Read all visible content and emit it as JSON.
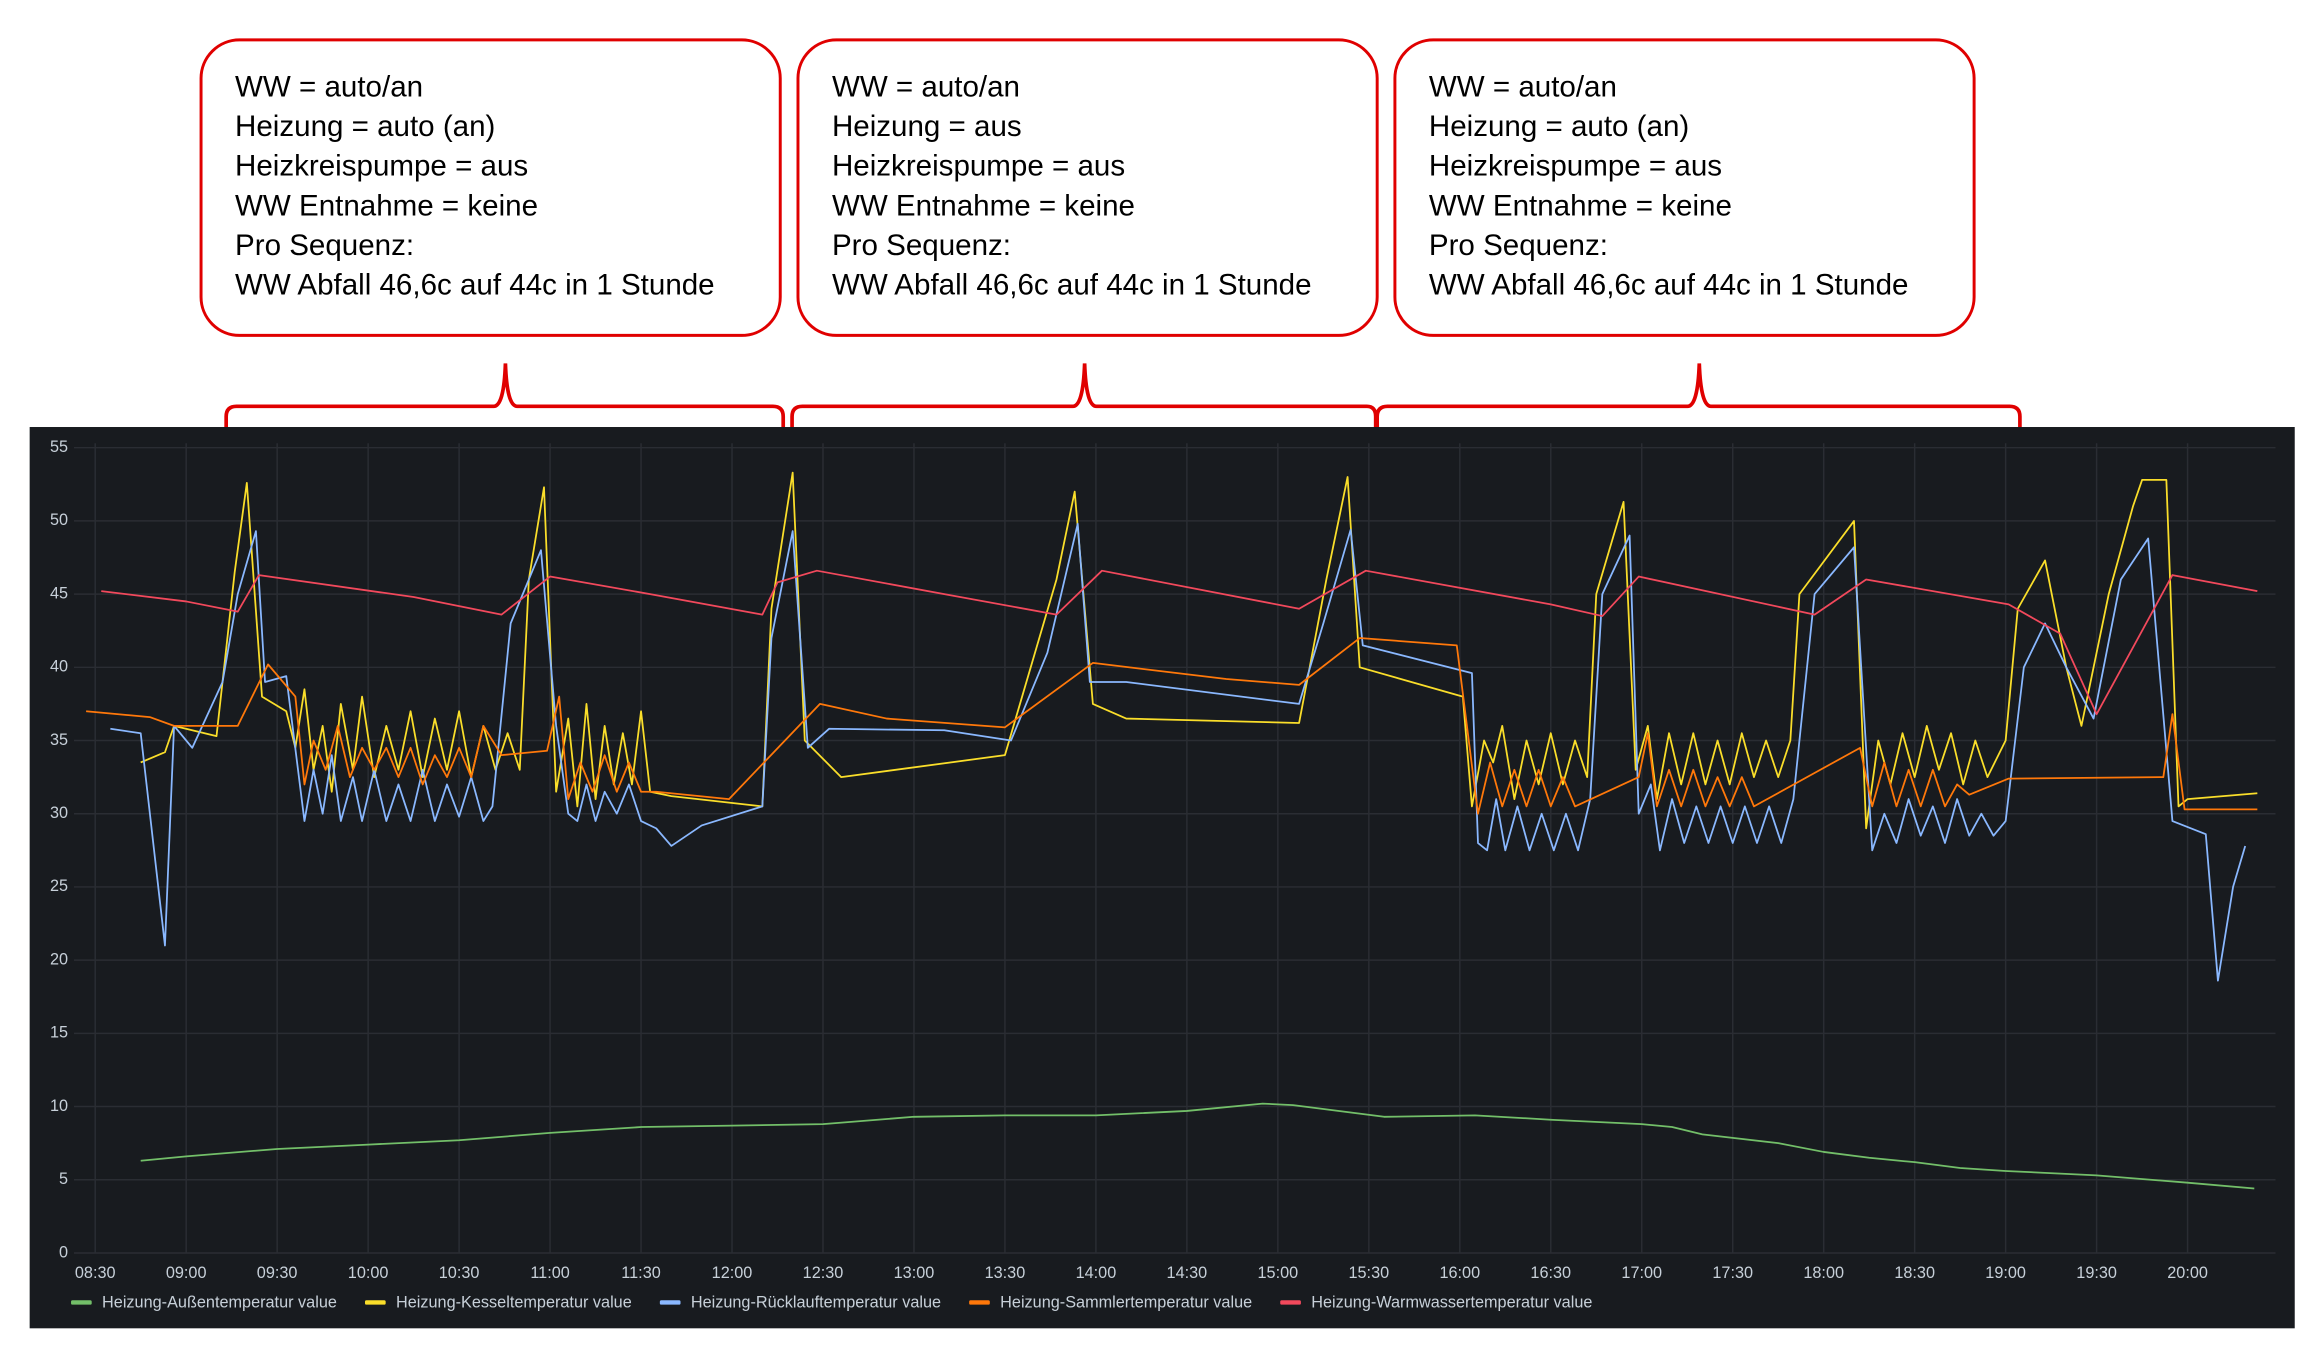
{
  "chart_data": {
    "type": "line",
    "xlim": [
      "08:23",
      "20:29"
    ],
    "xticks": [
      "08:30",
      "09:00",
      "09:30",
      "10:00",
      "10:30",
      "11:00",
      "11:30",
      "12:00",
      "12:30",
      "13:00",
      "13:30",
      "14:00",
      "14:30",
      "15:00",
      "15:30",
      "16:00",
      "16:30",
      "17:00",
      "17:30",
      "18:00",
      "18:30",
      "19:00",
      "19:30",
      "20:00"
    ],
    "ylim": [
      0,
      55
    ],
    "yticks": [
      0,
      5,
      10,
      15,
      20,
      25,
      30,
      35,
      40,
      45,
      50,
      55
    ],
    "grid": true,
    "legend": "bottom-left",
    "series": [
      {
        "name": "Heizung-Außentemperatur value",
        "color": "#73bf69",
        "x": [
          "08:45",
          "09:00",
          "09:30",
          "10:00",
          "10:30",
          "11:00",
          "11:30",
          "12:00",
          "12:30",
          "13:00",
          "13:30",
          "14:00",
          "14:30",
          "14:55",
          "15:05",
          "15:35",
          "16:05",
          "16:30",
          "17:00",
          "17:10",
          "17:20",
          "17:45",
          "18:00",
          "18:15",
          "18:30",
          "18:45",
          "19:00",
          "19:30",
          "20:00",
          "20:22"
        ],
        "values": [
          6.3,
          6.6,
          7.1,
          7.4,
          7.7,
          8.2,
          8.6,
          8.7,
          8.8,
          9.3,
          9.4,
          9.4,
          9.7,
          10.2,
          10.1,
          9.3,
          9.4,
          9.1,
          8.8,
          8.6,
          8.1,
          7.5,
          6.9,
          6.5,
          6.2,
          5.8,
          5.6,
          5.3,
          4.8,
          4.4
        ]
      },
      {
        "name": "Heizung-Kesseltemperatur value",
        "color": "#fade2a",
        "x": [
          "08:45",
          "08:53",
          "08:56",
          "09:10",
          "09:16",
          "09:20",
          "09:25",
          "09:33",
          "09:36",
          "09:39",
          "09:42",
          "09:45",
          "09:48",
          "09:51",
          "09:55",
          "09:58",
          "10:02",
          "10:06",
          "10:10",
          "10:14",
          "10:18",
          "10:22",
          "10:26",
          "10:30",
          "10:34",
          "10:38",
          "10:42",
          "10:46",
          "10:50",
          "10:53",
          "10:58",
          "11:02",
          "11:06",
          "11:09",
          "11:12",
          "11:15",
          "11:18",
          "11:21",
          "11:24",
          "11:27",
          "11:30",
          "11:33",
          "11:40",
          "12:10",
          "12:13",
          "12:20",
          "12:24",
          "12:36",
          "13:30",
          "13:47",
          "13:53",
          "13:59",
          "14:10",
          "15:07",
          "15:16",
          "15:23",
          "15:27",
          "16:01",
          "16:04",
          "16:08",
          "16:11",
          "16:14",
          "16:18",
          "16:22",
          "16:26",
          "16:30",
          "16:34",
          "16:38",
          "16:42",
          "16:45",
          "16:54",
          "16:58",
          "17:02",
          "17:05",
          "17:09",
          "17:13",
          "17:17",
          "17:21",
          "17:25",
          "17:29",
          "17:33",
          "17:37",
          "17:41",
          "17:45",
          "17:49",
          "17:52",
          "18:10",
          "18:14",
          "18:18",
          "18:22",
          "18:26",
          "18:30",
          "18:34",
          "18:38",
          "18:42",
          "18:46",
          "18:50",
          "18:54",
          "19:00",
          "19:04",
          "19:13",
          "19:20",
          "19:25",
          "19:34",
          "19:42",
          "19:45",
          "19:53",
          "19:57",
          "20:00",
          "20:23"
        ],
        "values": [
          33.5,
          34.2,
          36,
          35.3,
          46.5,
          52.6,
          38,
          37,
          34.5,
          38.5,
          33,
          36,
          31.5,
          37.5,
          33,
          38,
          32.5,
          36,
          33,
          37,
          32.5,
          36.5,
          33,
          37,
          32.5,
          36,
          33,
          35.5,
          33,
          46,
          52.3,
          31.5,
          36.5,
          30.5,
          37.5,
          31,
          36,
          32,
          35.5,
          32,
          37,
          31.5,
          31.2,
          30.5,
          44,
          53.3,
          35,
          32.5,
          34,
          46,
          52,
          37.5,
          36.5,
          36.2,
          46,
          53,
          40,
          38,
          30.5,
          35,
          33.5,
          36,
          31,
          35,
          32,
          35.5,
          32,
          35,
          32.5,
          45,
          51.3,
          33,
          36,
          31,
          35.5,
          32,
          35.5,
          32,
          35,
          32,
          35.5,
          32.5,
          35,
          32.5,
          35,
          45,
          50,
          29,
          35,
          32,
          35.5,
          32.5,
          36,
          33,
          35.5,
          32,
          35,
          32.5,
          35,
          44,
          47.3,
          40,
          36,
          45,
          51,
          52.8,
          52.8,
          30.5,
          31,
          31.4
        ]
      },
      {
        "name": "Heizung-Rücklauftemperatur value",
        "color": "#8ab8ff",
        "x": [
          "08:35",
          "08:45",
          "08:53",
          "08:56",
          "09:02",
          "09:12",
          "09:17",
          "09:23",
          "09:26",
          "09:33",
          "09:39",
          "09:42",
          "09:45",
          "09:48",
          "09:51",
          "09:55",
          "09:58",
          "10:02",
          "10:06",
          "10:10",
          "10:14",
          "10:18",
          "10:22",
          "10:26",
          "10:30",
          "10:34",
          "10:38",
          "10:41",
          "10:47",
          "10:57",
          "11:02",
          "11:06",
          "11:09",
          "11:12",
          "11:15",
          "11:18",
          "11:22",
          "11:26",
          "11:30",
          "11:35",
          "11:40",
          "11:50",
          "12:10",
          "12:13",
          "12:20",
          "12:25",
          "12:32",
          "13:10",
          "13:32",
          "13:44",
          "13:54",
          "13:58",
          "14:10",
          "15:07",
          "15:15",
          "15:24",
          "15:28",
          "16:04",
          "16:06",
          "16:09",
          "16:12",
          "16:15",
          "16:19",
          "16:23",
          "16:27",
          "16:31",
          "16:35",
          "16:39",
          "16:43",
          "16:47",
          "16:56",
          "16:59",
          "17:03",
          "17:06",
          "17:10",
          "17:14",
          "17:18",
          "17:22",
          "17:26",
          "17:30",
          "17:34",
          "17:38",
          "17:42",
          "17:46",
          "17:50",
          "17:57",
          "18:10",
          "18:16",
          "18:20",
          "18:24",
          "18:28",
          "18:32",
          "18:36",
          "18:40",
          "18:44",
          "18:48",
          "18:52",
          "18:56",
          "19:00",
          "19:06",
          "19:13",
          "19:20",
          "19:29",
          "19:38",
          "19:47",
          "19:55",
          "20:06",
          "20:10",
          "20:15",
          "20:19"
        ],
        "values": [
          35.8,
          35.5,
          21,
          36,
          34.5,
          39,
          45,
          49.3,
          39,
          39.4,
          29.5,
          33,
          30,
          34,
          29.5,
          32.5,
          29.5,
          33,
          29.5,
          32,
          29.5,
          33,
          29.5,
          32,
          29.8,
          32.5,
          29.5,
          30.5,
          43,
          48,
          36,
          30,
          29.5,
          32,
          29.5,
          31.5,
          30,
          32,
          29.5,
          29,
          27.8,
          29.2,
          30.5,
          42,
          49.3,
          34.5,
          35.8,
          35.7,
          35,
          41,
          49.8,
          39,
          39,
          37.5,
          43,
          49.4,
          41.5,
          39.6,
          28,
          27.5,
          31,
          27.5,
          30.5,
          27.5,
          30,
          27.5,
          30,
          27.5,
          31,
          45,
          49,
          30,
          32,
          27.5,
          31,
          28,
          30.5,
          28,
          30.5,
          28,
          30.5,
          28,
          30.5,
          28,
          31,
          45,
          48.2,
          27.5,
          30,
          28,
          31,
          28.5,
          30.5,
          28,
          31,
          28.5,
          30,
          28.5,
          29.5,
          40,
          43,
          40,
          36.5,
          46,
          48.8,
          29.5,
          28.6,
          18.6,
          25,
          27.8
        ]
      },
      {
        "name": "Heizung-Sammlertemperatur value",
        "color": "#ff780a",
        "x": [
          "08:27",
          "08:48",
          "08:56",
          "09:17",
          "09:27",
          "09:36",
          "09:39",
          "09:42",
          "09:46",
          "09:50",
          "09:54",
          "09:58",
          "10:02",
          "10:06",
          "10:10",
          "10:14",
          "10:18",
          "10:22",
          "10:26",
          "10:30",
          "10:34",
          "10:38",
          "10:44",
          "10:59",
          "11:03",
          "11:06",
          "11:10",
          "11:14",
          "11:18",
          "11:22",
          "11:26",
          "11:30",
          "11:35",
          "11:59",
          "12:29",
          "12:51",
          "13:30",
          "13:59",
          "14:43",
          "15:07",
          "15:27",
          "15:59",
          "16:06",
          "16:10",
          "16:14",
          "16:18",
          "16:22",
          "16:26",
          "16:30",
          "16:34",
          "16:38",
          "16:59",
          "17:02",
          "17:05",
          "17:09",
          "17:13",
          "17:17",
          "17:21",
          "17:25",
          "17:29",
          "17:33",
          "17:37",
          "18:12",
          "18:16",
          "18:20",
          "18:24",
          "18:28",
          "18:32",
          "18:36",
          "18:40",
          "18:44",
          "18:48",
          "19:01",
          "19:52",
          "19:55",
          "19:59",
          "20:23"
        ],
        "values": [
          37,
          36.6,
          36,
          36,
          40.2,
          38,
          32,
          35,
          33,
          36,
          32.5,
          34.5,
          33,
          34.5,
          32.5,
          34.5,
          32,
          34,
          32.5,
          34.5,
          32.5,
          36,
          34,
          34.3,
          38,
          31,
          33.5,
          31.5,
          34,
          31.5,
          33.5,
          31.5,
          31.5,
          31,
          37.5,
          36.5,
          35.9,
          40.3,
          39.2,
          38.8,
          42,
          41.5,
          30,
          33.5,
          30.5,
          33,
          30.5,
          33,
          30.5,
          32.5,
          30.5,
          32.5,
          35.5,
          30.5,
          33,
          30.5,
          33,
          30.5,
          32.5,
          30.5,
          32.5,
          30.5,
          34.5,
          30.5,
          33.5,
          30.5,
          33,
          30.5,
          33,
          30.5,
          32,
          31.3,
          32.4,
          32.5,
          36.8,
          30.3,
          30.3
        ]
      },
      {
        "name": "Heizung-Warmwassertemperatur value",
        "color": "#f2495c",
        "x": [
          "08:32",
          "09:00",
          "09:17",
          "09:24",
          "10:15",
          "10:44",
          "11:00",
          "11:33",
          "12:10",
          "12:15",
          "12:28",
          "13:10",
          "13:47",
          "14:02",
          "15:07",
          "15:29",
          "16:30",
          "16:47",
          "16:59",
          "17:57",
          "18:14",
          "19:01",
          "19:18",
          "19:30",
          "19:55",
          "20:23"
        ],
        "values": [
          45.2,
          44.5,
          43.8,
          46.3,
          44.8,
          43.6,
          46.2,
          45.0,
          43.6,
          45.8,
          46.6,
          45.0,
          43.6,
          46.6,
          44.0,
          46.6,
          44.3,
          43.5,
          46.2,
          43.6,
          46.0,
          44.3,
          42.3,
          36.8,
          46.3,
          45.2
        ]
      }
    ]
  },
  "annotations": [
    {
      "lines": [
        "WW = auto/an",
        "Heizung = auto (an)",
        "Heizkreispumpe = aus",
        "WW Entnahme = keine",
        "Pro Sequenz:",
        "WW Abfall 46,6c auf 44c in 1 Stunde"
      ]
    },
    {
      "lines": [
        "WW = auto/an",
        "Heizung = aus",
        "Heizkreispumpe = aus",
        "WW Entnahme = keine",
        "Pro Sequenz:",
        "WW Abfall 46,6c auf 44c in 1 Stunde"
      ]
    },
    {
      "lines": [
        "WW = auto/an",
        "Heizung = auto (an)",
        "Heizkreispumpe = aus",
        "WW Entnahme = keine",
        "Pro Sequenz:",
        "WW Abfall 46,6c auf 44c in 1 Stunde"
      ]
    }
  ]
}
